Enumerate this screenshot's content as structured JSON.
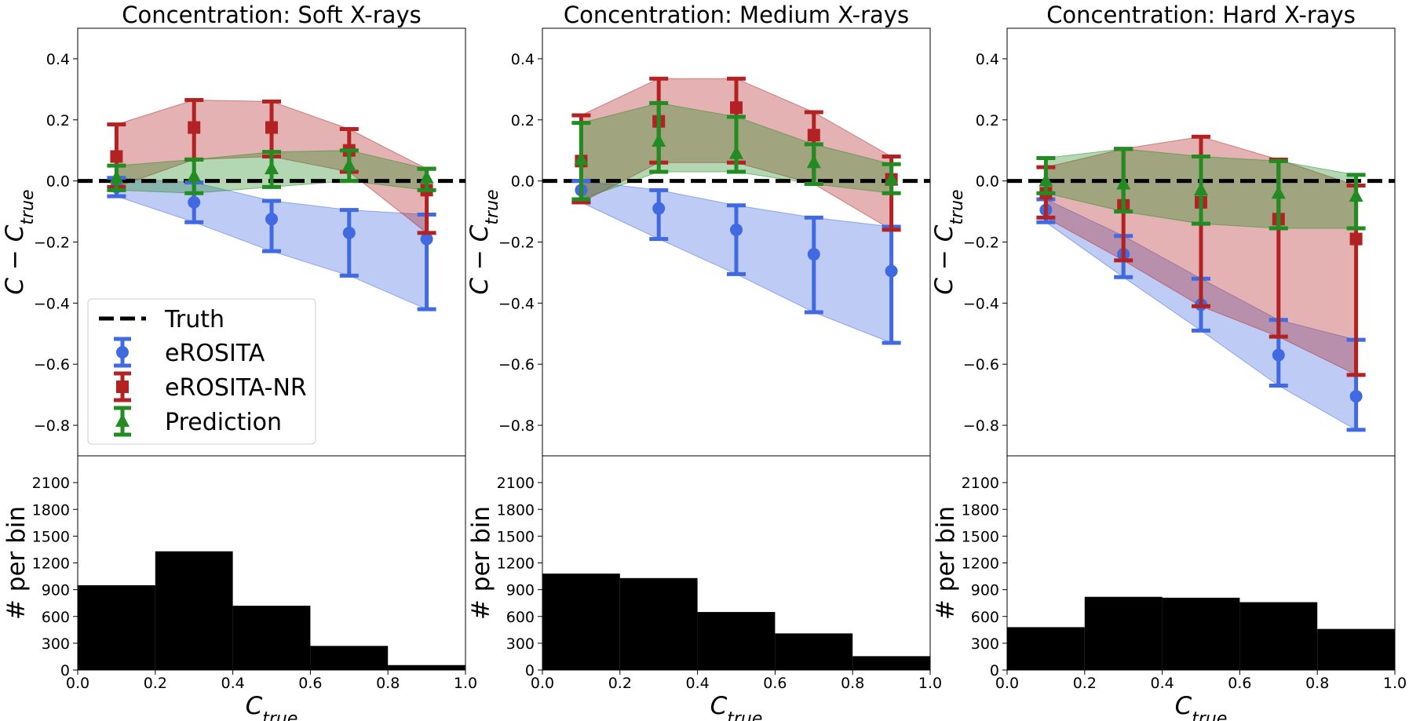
{
  "chart_data": [
    {
      "type": "errorbar",
      "title": "Concentration: Soft X-rays",
      "ylabel": "C − C_true",
      "xlim": [
        0.0,
        1.0
      ],
      "ylim": [
        -0.9,
        0.5
      ],
      "yticks": [
        0.4,
        0.2,
        0.0,
        -0.2,
        -0.4,
        -0.6,
        -0.8
      ],
      "ytick_labels": [
        "0.4",
        "0.2",
        "0.0",
        "−0.2",
        "−0.4",
        "−0.6",
        "−0.8"
      ],
      "reference_line": {
        "name": "Truth",
        "y": 0.0
      },
      "x": [
        0.1,
        0.3,
        0.5,
        0.7,
        0.9
      ],
      "series": [
        {
          "name": "eROSITA",
          "color": "#4169e1",
          "marker": "circle",
          "y": [
            -0.02,
            -0.07,
            -0.125,
            -0.17,
            -0.19
          ],
          "lower": [
            -0.05,
            -0.135,
            -0.23,
            -0.31,
            -0.42
          ],
          "upper": [
            0.01,
            -0.005,
            -0.065,
            -0.095,
            -0.11
          ]
        },
        {
          "name": "eROSITA-NR",
          "color": "#b22222",
          "marker": "square",
          "y": [
            0.08,
            0.175,
            0.175,
            0.1,
            -0.03
          ],
          "lower": [
            -0.02,
            0.07,
            0.08,
            0.03,
            -0.17
          ],
          "upper": [
            0.185,
            0.265,
            0.26,
            0.17,
            0.04
          ]
        },
        {
          "name": "Prediction",
          "color": "#228b22",
          "marker": "triangle",
          "y": [
            0.01,
            0.015,
            0.04,
            0.05,
            0.01
          ],
          "lower": [
            -0.03,
            -0.04,
            -0.02,
            0.0,
            -0.03
          ],
          "upper": [
            0.05,
            0.07,
            0.095,
            0.1,
            0.04
          ]
        }
      ],
      "legend": {
        "location": "lower-left",
        "entries": [
          "Truth",
          "eROSITA",
          "eROSITA-NR",
          "Prediction"
        ]
      }
    },
    {
      "type": "errorbar",
      "title": "Concentration: Medium X-rays",
      "ylabel": "C − C_true",
      "xlim": [
        0.0,
        1.0
      ],
      "ylim": [
        -0.9,
        0.5
      ],
      "yticks": [
        0.4,
        0.2,
        0.0,
        -0.2,
        -0.4,
        -0.6,
        -0.8
      ],
      "ytick_labels": [
        "0.4",
        "0.2",
        "0.0",
        "−0.2",
        "−0.4",
        "−0.6",
        "−0.8"
      ],
      "reference_line": {
        "name": "Truth",
        "y": 0.0
      },
      "x": [
        0.1,
        0.3,
        0.5,
        0.7,
        0.9
      ],
      "series": [
        {
          "name": "eROSITA",
          "color": "#4169e1",
          "marker": "circle",
          "y": [
            -0.03,
            -0.09,
            -0.16,
            -0.24,
            -0.295
          ],
          "lower": [
            -0.07,
            -0.19,
            -0.305,
            -0.43,
            -0.53
          ],
          "upper": [
            0.0,
            -0.03,
            -0.08,
            -0.12,
            -0.15
          ]
        },
        {
          "name": "eROSITA-NR",
          "color": "#b22222",
          "marker": "square",
          "y": [
            0.065,
            0.195,
            0.24,
            0.15,
            0.005
          ],
          "lower": [
            -0.07,
            0.06,
            0.06,
            -0.01,
            -0.16
          ],
          "upper": [
            0.215,
            0.335,
            0.335,
            0.225,
            0.08
          ]
        },
        {
          "name": "Prediction",
          "color": "#228b22",
          "marker": "triangle",
          "y": [
            0.07,
            0.13,
            0.09,
            0.06,
            0.005
          ],
          "lower": [
            -0.06,
            0.03,
            0.03,
            -0.01,
            -0.04
          ],
          "upper": [
            0.19,
            0.255,
            0.21,
            0.12,
            0.055
          ]
        }
      ]
    },
    {
      "type": "errorbar",
      "title": "Concentration: Hard X-rays",
      "ylabel": "C − C_true",
      "xlim": [
        0.0,
        1.0
      ],
      "ylim": [
        -0.9,
        0.5
      ],
      "yticks": [
        0.4,
        0.2,
        0.0,
        -0.2,
        -0.4,
        -0.6,
        -0.8
      ],
      "ytick_labels": [
        "0.4",
        "0.2",
        "0.0",
        "−0.2",
        "−0.4",
        "−0.6",
        "−0.8"
      ],
      "reference_line": {
        "name": "Truth",
        "y": 0.0
      },
      "x": [
        0.1,
        0.3,
        0.5,
        0.7,
        0.9
      ],
      "series": [
        {
          "name": "eROSITA",
          "color": "#4169e1",
          "marker": "circle",
          "y": [
            -0.095,
            -0.24,
            -0.405,
            -0.57,
            -0.705
          ],
          "lower": [
            -0.135,
            -0.315,
            -0.49,
            -0.67,
            -0.815
          ],
          "upper": [
            -0.06,
            -0.18,
            -0.32,
            -0.455,
            -0.52
          ]
        },
        {
          "name": "eROSITA-NR",
          "color": "#b22222",
          "marker": "square",
          "y": [
            -0.04,
            -0.08,
            -0.07,
            -0.125,
            -0.19
          ],
          "lower": [
            -0.12,
            -0.26,
            -0.41,
            -0.51,
            -0.635
          ],
          "upper": [
            0.045,
            0.105,
            0.145,
            0.07,
            -0.015
          ]
        },
        {
          "name": "Prediction",
          "color": "#228b22",
          "marker": "triangle",
          "y": [
            0.0,
            -0.01,
            -0.03,
            -0.04,
            -0.05
          ],
          "lower": [
            -0.04,
            -0.1,
            -0.14,
            -0.155,
            -0.155
          ],
          "upper": [
            0.075,
            0.105,
            0.08,
            0.065,
            0.02
          ]
        }
      ]
    },
    {
      "type": "histogram",
      "ylabel": "# per bin",
      "xlabel": "C_true",
      "xlim": [
        0.0,
        1.0
      ],
      "ylim": [
        0,
        2400
      ],
      "xticks": [
        "0.0",
        "0.2",
        "0.4",
        "0.6",
        "0.8",
        "1.0"
      ],
      "yticks": [
        "0",
        "300",
        "600",
        "900",
        "1200",
        "1500",
        "1800",
        "2100"
      ],
      "bins": [
        0.0,
        0.2,
        0.4,
        0.6,
        0.8,
        1.0
      ],
      "counts": [
        950,
        1330,
        720,
        270,
        55
      ],
      "color": "#000000"
    },
    {
      "type": "histogram",
      "ylabel": "# per bin",
      "xlabel": "C_true",
      "xlim": [
        0.0,
        1.0
      ],
      "ylim": [
        0,
        2400
      ],
      "xticks": [
        "0.0",
        "0.2",
        "0.4",
        "0.6",
        "0.8",
        "1.0"
      ],
      "yticks": [
        "0",
        "300",
        "600",
        "900",
        "1200",
        "1500",
        "1800",
        "2100"
      ],
      "bins": [
        0.0,
        0.2,
        0.4,
        0.6,
        0.8,
        1.0
      ],
      "counts": [
        1080,
        1030,
        650,
        410,
        155
      ],
      "color": "#000000"
    },
    {
      "type": "histogram",
      "ylabel": "# per bin",
      "xlabel": "C_true",
      "xlim": [
        0.0,
        1.0
      ],
      "ylim": [
        0,
        2400
      ],
      "xticks": [
        "0.0",
        "0.2",
        "0.4",
        "0.6",
        "0.8",
        "1.0"
      ],
      "yticks": [
        "0",
        "300",
        "600",
        "900",
        "1200",
        "1500",
        "1800",
        "2100"
      ],
      "bins": [
        0.0,
        0.2,
        0.4,
        0.6,
        0.8,
        1.0
      ],
      "counts": [
        480,
        820,
        810,
        760,
        460
      ],
      "color": "#000000"
    }
  ]
}
